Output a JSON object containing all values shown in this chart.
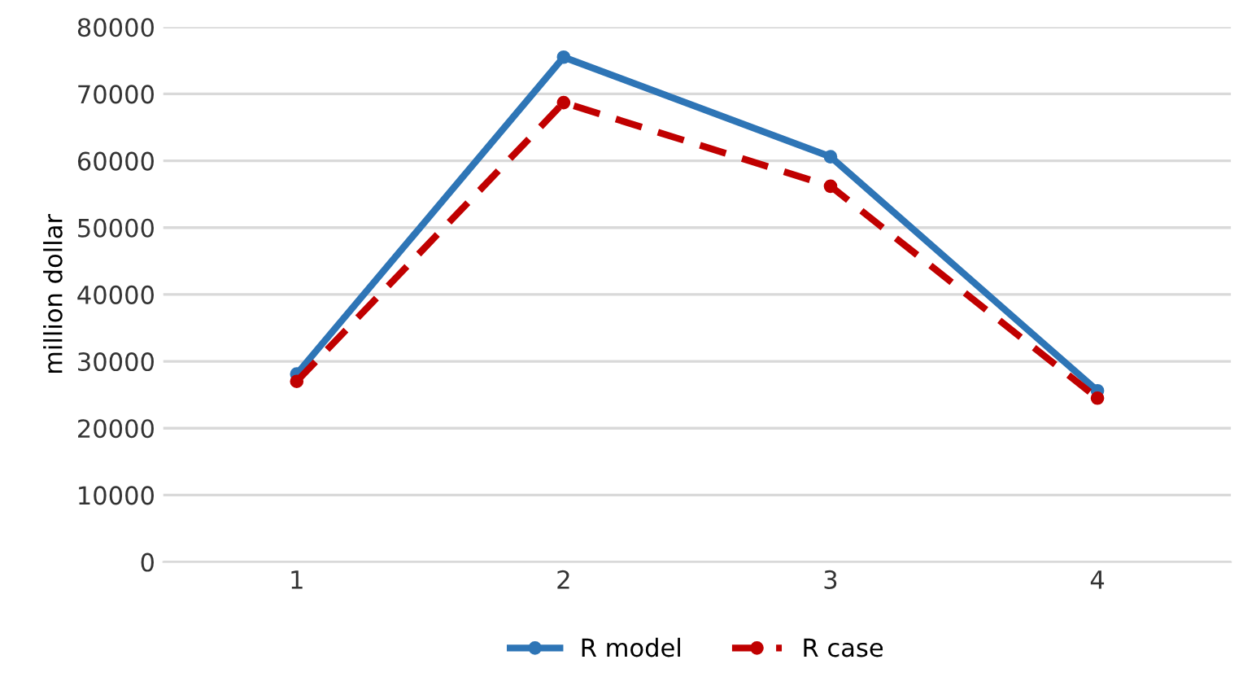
{
  "chart_data": {
    "type": "line",
    "ylabel": "million dollar",
    "categories": [
      "1",
      "2",
      "3",
      "4"
    ],
    "series": [
      {
        "name": "R model",
        "color": "#2e75b6",
        "line_style": "solid",
        "values": [
          28100,
          75500,
          60600,
          25600
        ]
      },
      {
        "name": "R case",
        "color": "#c00000",
        "line_style": "dashed",
        "values": [
          27000,
          68700,
          56200,
          24500
        ]
      }
    ],
    "ylim": [
      0,
      80000
    ],
    "yticks": [
      0,
      10000,
      20000,
      30000,
      40000,
      50000,
      60000,
      70000,
      80000
    ],
    "grid": "y",
    "legend": "bottom",
    "marker": "circle"
  }
}
